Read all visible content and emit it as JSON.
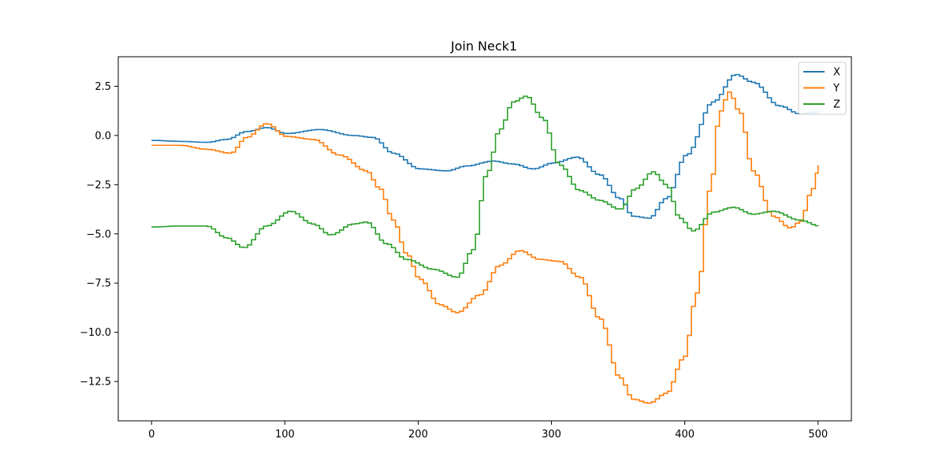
{
  "chart_data": {
    "type": "line",
    "title": "Join Neck1",
    "xlabel": "",
    "ylabel": "",
    "xlim": [
      -25,
      525
    ],
    "ylim": [
      -14.5,
      4
    ],
    "xticks": [
      0,
      100,
      200,
      300,
      400,
      500
    ],
    "xtick_labels": [
      "0",
      "100",
      "200",
      "300",
      "400",
      "500"
    ],
    "yticks": [
      2.5,
      0,
      -2.5,
      -5,
      -7.5,
      -10,
      -12.5
    ],
    "ytick_labels": [
      "2.5",
      "0.0",
      "−2.5",
      "−5.0",
      "−7.5",
      "−10.0",
      "−12.5"
    ],
    "grid": false,
    "legend": "top-right",
    "step": true,
    "series": [
      {
        "name": "X",
        "color": "#1f77b4",
        "x": [
          0,
          20,
          40,
          55,
          70,
          85,
          100,
          125,
          150,
          165,
          180,
          200,
          220,
          235,
          255,
          270,
          285,
          300,
          318,
          335,
          350,
          360,
          372,
          385,
          400,
          420,
          437,
          450,
          470,
          485,
          500
        ],
        "y": [
          -0.25,
          -0.3,
          -0.35,
          -0.2,
          0.2,
          0.4,
          0.1,
          0.3,
          0.0,
          -0.1,
          -0.9,
          -1.7,
          -1.8,
          -1.55,
          -1.3,
          -1.45,
          -1.7,
          -1.4,
          -1.1,
          -2.0,
          -3.2,
          -4.1,
          -4.2,
          -3.2,
          -1.0,
          1.7,
          3.1,
          2.7,
          1.5,
          1.1,
          1.2
        ]
      },
      {
        "name": "Y",
        "color": "#ff7f0e",
        "x": [
          0,
          20,
          40,
          58,
          70,
          85,
          100,
          120,
          140,
          160,
          170,
          180,
          190,
          200,
          215,
          228,
          245,
          260,
          275,
          290,
          305,
          320,
          335,
          350,
          360,
          372,
          385,
          398,
          408,
          418,
          425,
          432,
          440,
          450,
          465,
          478,
          485,
          495,
          500
        ],
        "y": [
          -0.5,
          -0.5,
          -0.7,
          -0.9,
          -0.1,
          0.6,
          -0.05,
          -0.2,
          -1.0,
          -1.8,
          -2.7,
          -4.3,
          -6.0,
          -7.3,
          -8.6,
          -9.0,
          -8.1,
          -6.6,
          -5.85,
          -6.3,
          -6.4,
          -7.2,
          -9.3,
          -12.3,
          -13.4,
          -13.6,
          -13.1,
          -11.3,
          -8.0,
          -2.7,
          1.2,
          2.2,
          1.2,
          -1.8,
          -4.1,
          -4.7,
          -4.4,
          -2.7,
          -1.5
        ]
      },
      {
        "name": "Z",
        "color": "#2ca02c",
        "x": [
          0,
          20,
          40,
          55,
          68,
          85,
          103,
          120,
          133,
          150,
          160,
          175,
          190,
          210,
          228,
          240,
          250,
          260,
          270,
          280,
          292,
          305,
          320,
          335,
          350,
          362,
          375,
          385,
          395,
          405,
          420,
          435,
          450,
          465,
          485,
          500
        ],
        "y": [
          -4.65,
          -4.6,
          -4.6,
          -5.2,
          -5.7,
          -4.6,
          -3.85,
          -4.5,
          -5.05,
          -4.5,
          -4.4,
          -5.5,
          -6.3,
          -6.8,
          -7.2,
          -5.8,
          -2.0,
          0.3,
          1.7,
          2.0,
          0.9,
          -1.5,
          -2.8,
          -3.3,
          -3.75,
          -2.7,
          -1.85,
          -2.5,
          -4.2,
          -4.85,
          -3.9,
          -3.65,
          -4.0,
          -3.85,
          -4.3,
          -4.6
        ]
      }
    ]
  }
}
